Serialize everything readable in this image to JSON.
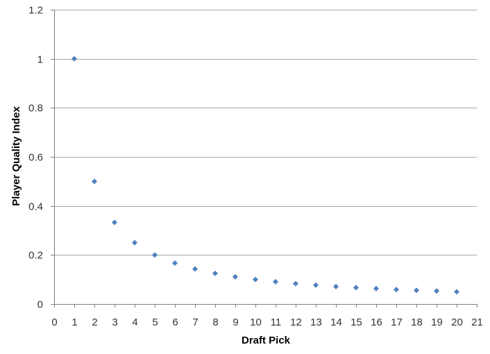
{
  "chart_data": {
    "type": "scatter",
    "title": "",
    "xlabel": "Draft Pick",
    "ylabel": "Player Quality Index",
    "xlim": [
      0,
      21
    ],
    "ylim": [
      0,
      1.2
    ],
    "x_ticks": [
      0,
      1,
      2,
      3,
      4,
      5,
      6,
      7,
      8,
      9,
      10,
      11,
      12,
      13,
      14,
      15,
      16,
      17,
      18,
      19,
      20,
      21
    ],
    "y_ticks": [
      0,
      0.2,
      0.4,
      0.6,
      0.8,
      1,
      1.2
    ],
    "y_tick_labels": [
      "0",
      "0.2",
      "0.4",
      "0.6",
      "0.8",
      "1",
      "1.2"
    ],
    "grid": "horizontal",
    "legend": "none",
    "marker": "diamond",
    "marker_color": "#4f81bd",
    "series": [
      {
        "x": [
          1,
          2,
          3,
          4,
          5,
          6,
          7,
          8,
          9,
          10,
          11,
          12,
          13,
          14,
          15,
          16,
          17,
          18,
          19,
          20
        ],
        "y": [
          1.0,
          0.5,
          0.333,
          0.25,
          0.2,
          0.167,
          0.143,
          0.125,
          0.111,
          0.1,
          0.091,
          0.083,
          0.077,
          0.071,
          0.067,
          0.063,
          0.059,
          0.056,
          0.053,
          0.05
        ]
      }
    ]
  }
}
